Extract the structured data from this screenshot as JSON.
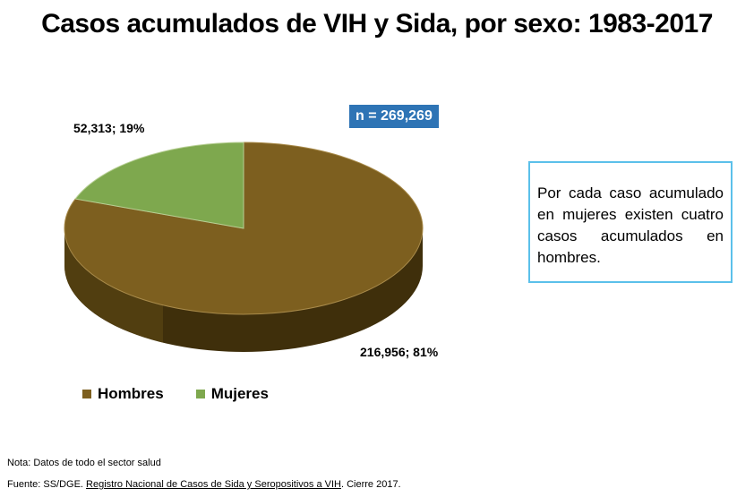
{
  "title": "Casos acumulados de VIH y Sida, por sexo: 1983-2017",
  "n_label": "n = 269,269",
  "note_text": "Por cada caso acumulado en mujeres existen cuatro casos acumulados en hombres.",
  "footnote": {
    "nota": "Nota: Datos de todo el sector salud",
    "fuente_prefix": "Fuente: SS/DGE. ",
    "fuente_link": "Registro Nacional de Casos de Sida y Seropositivos a VIH",
    "fuente_suffix": ". Cierre 2017."
  },
  "colors": {
    "hombres": "#7d5f1f",
    "hombres_side": "#3f2f0b",
    "mujeres": "#7ea84e",
    "mujeres_side": "#4d6a2c",
    "badge": "#2e74b5",
    "box_border": "#5bc0ea"
  },
  "chart_data": {
    "type": "pie",
    "title": "Casos acumulados de VIH y Sida, por sexo: 1983-2017",
    "slices": [
      {
        "name": "Hombres",
        "value": 216956,
        "percent": 81,
        "label": "216,956; 81%"
      },
      {
        "name": "Mujeres",
        "value": 52313,
        "percent": 19,
        "label": "52,313; 19%"
      }
    ],
    "total": 269269,
    "legend": [
      "Hombres",
      "Mujeres"
    ],
    "legend_position": "bottom-left",
    "style": "3d"
  }
}
